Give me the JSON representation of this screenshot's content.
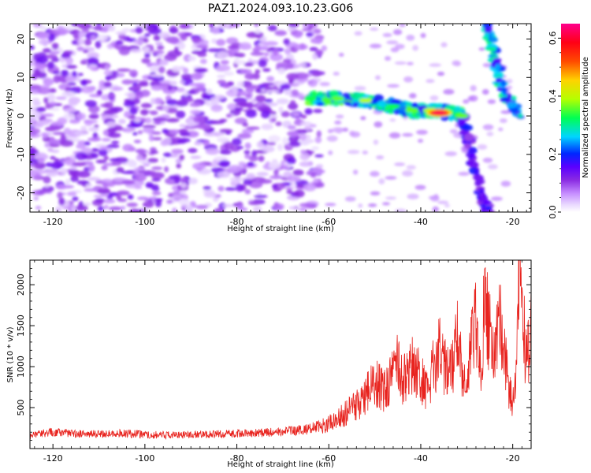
{
  "title": "PAZ1.2024.093.10.23.G06",
  "chart_data": [
    {
      "type": "heatmap",
      "xlabel": "Height of straight line (km)",
      "ylabel": "Frequency (Hz)",
      "xlim": [
        -125,
        -16
      ],
      "ylim": [
        -25,
        24
      ],
      "xticks": [
        -120,
        -100,
        -80,
        -60,
        -40,
        -20
      ],
      "yticks": [
        -20,
        -10,
        0,
        10,
        20
      ],
      "colorbar": {
        "label": "Normalized spectral amplitude",
        "range": [
          0.0,
          0.65
        ],
        "ticks": [
          0.0,
          0.2,
          0.4,
          0.6
        ],
        "colormap": "gist_rainbow_r (purple → blue → cyan → green → yellow → red → magenta)"
      },
      "features": [
        {
          "name": "noise field",
          "x_range": [
            -125,
            -62
          ],
          "freq_range": [
            -25,
            24
          ],
          "amplitude": 0.1
        },
        {
          "name": "main ridge",
          "points": [
            [
              -64,
              4.5
            ],
            [
              -58,
              4.5
            ],
            [
              -52,
              4.0
            ],
            [
              -46,
              2.5
            ],
            [
              -42,
              1.5
            ],
            [
              -38,
              1.5
            ],
            [
              -34,
              1.0
            ],
            [
              -31,
              0.0
            ]
          ],
          "peak": {
            "x": -36,
            "freq": 0.8,
            "amplitude": 0.62
          }
        },
        {
          "name": "left descending branch",
          "points": [
            [
              -31,
              0
            ],
            [
              -29,
              -10
            ],
            [
              -27,
              -20
            ],
            [
              -25.5,
              -25
            ]
          ],
          "amplitude": 0.15
        },
        {
          "name": "right ascending branch",
          "points": [
            [
              -26,
              24
            ],
            [
              -24,
              15
            ],
            [
              -22,
              6
            ],
            [
              -18.5,
              0
            ]
          ],
          "amplitude": 0.25
        }
      ]
    },
    {
      "type": "line",
      "series": [
        {
          "color": "#e8231e",
          "x": [
            -125,
            -120,
            -115,
            -110,
            -105,
            -100,
            -95,
            -90,
            -85,
            -80,
            -75,
            -70,
            -65,
            -60,
            -57,
            -54,
            -52,
            -50,
            -48,
            -46,
            -45,
            -44,
            -42,
            -40,
            -39,
            -38,
            -36,
            -34,
            -33,
            -32,
            -31,
            -30,
            -29,
            -28,
            -27,
            -26,
            -25,
            -24,
            -23,
            -22,
            -21,
            -20,
            -19,
            -18.5,
            -18,
            -17.5,
            -17,
            -16
          ],
          "y": [
            160,
            200,
            180,
            175,
            190,
            170,
            165,
            170,
            175,
            185,
            190,
            210,
            230,
            300,
            400,
            520,
            650,
            820,
            700,
            900,
            1100,
            800,
            1000,
            900,
            700,
            850,
            1200,
            900,
            1000,
            1350,
            900,
            700,
            1300,
            1550,
            900,
            1900,
            1400,
            1100,
            1700,
            1250,
            800,
            600,
            1200,
            2300,
            1700,
            1400,
            1000,
            1500
          ]
        }
      ],
      "xlabel": "Height of straight line (km)",
      "ylabel": "SNR (10 * v/v)",
      "xlim": [
        -125,
        -16
      ],
      "ylim": [
        0,
        2300
      ],
      "xticks": [
        -120,
        -100,
        -80,
        -60,
        -40,
        -20
      ],
      "yticks": [
        500,
        1000,
        1500,
        2000
      ],
      "grid": false
    }
  ]
}
